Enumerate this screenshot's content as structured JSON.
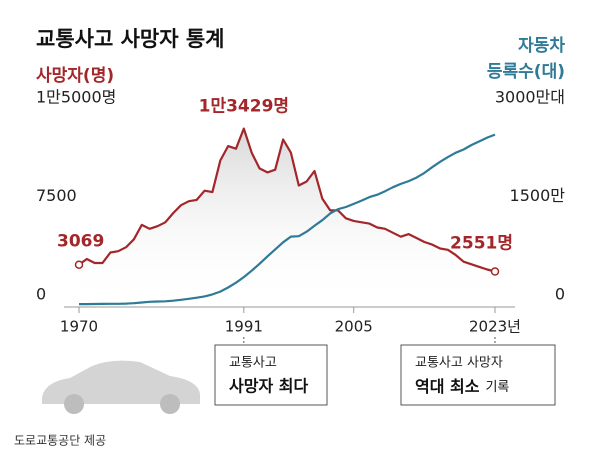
{
  "chart_data": {
    "type": "line",
    "title": "교통사고 사망자 통계",
    "y_label": "사망자(명)",
    "y2_label": [
      "자동차",
      "등록수(대)"
    ],
    "x": [
      1970,
      1971,
      1972,
      1973,
      1974,
      1975,
      1976,
      1977,
      1978,
      1979,
      1980,
      1981,
      1982,
      1983,
      1984,
      1985,
      1986,
      1987,
      1988,
      1989,
      1990,
      1991,
      1992,
      1993,
      1994,
      1995,
      1996,
      1997,
      1998,
      1999,
      2000,
      2001,
      2002,
      2003,
      2004,
      2005,
      2006,
      2007,
      2008,
      2009,
      2010,
      2011,
      2012,
      2013,
      2014,
      2015,
      2016,
      2017,
      2018,
      2019,
      2020,
      2021,
      2022,
      2023
    ],
    "xlim": [
      1970,
      2023
    ],
    "xticks": [
      1970,
      1991,
      2005,
      {
        "value": 2023,
        "label": "2023년"
      }
    ],
    "ylim": [
      0,
      15000
    ],
    "yticks": [
      0,
      7500,
      {
        "value": 15000,
        "label": "1만5000명"
      }
    ],
    "y2lim": [
      0,
      3000
    ],
    "y2ticks": [
      0,
      {
        "value": 1500,
        "label": "1500만"
      },
      {
        "value": 3000,
        "label": "3000만대"
      }
    ],
    "series": [
      {
        "name": "사망자",
        "color": "#a3262a",
        "values": [
          3069,
          3500,
          3200,
          3200,
          4000,
          4100,
          4400,
          5000,
          6100,
          5800,
          6000,
          6300,
          7000,
          7600,
          7900,
          8000,
          8700,
          8600,
          11000,
          12100,
          11900,
          13429,
          11600,
          10400,
          10100,
          10300,
          12600,
          11600,
          9100,
          9400,
          10200,
          8100,
          7200,
          7200,
          6600,
          6400,
          6300,
          6200,
          5900,
          5800,
          5500,
          5200,
          5400,
          5100,
          4800,
          4600,
          4300,
          4200,
          3800,
          3300,
          3100,
          2900,
          2700,
          2551
        ],
        "value_labels": [
          "3069",
          null,
          null,
          null,
          null,
          null,
          null,
          null,
          null,
          null,
          null,
          null,
          null,
          null,
          null,
          null,
          null,
          null,
          null,
          null,
          null,
          "1만3429명",
          null,
          null,
          null,
          null,
          null,
          null,
          null,
          null,
          null,
          null,
          null,
          null,
          null,
          null,
          null,
          null,
          null,
          null,
          null,
          null,
          null,
          null,
          null,
          null,
          null,
          null,
          null,
          null,
          null,
          null,
          null,
          "2551명"
        ]
      },
      {
        "name": "자동차 등록수",
        "color": "#2f7a96",
        "axis": "y2",
        "values": [
          13,
          14,
          15,
          17,
          18,
          19,
          22,
          27,
          38,
          49,
          53,
          57,
          65,
          79,
          95,
          111,
          131,
          161,
          204,
          266,
          339,
          425,
          523,
          627,
          740,
          847,
          955,
          1041,
          1047,
          1116,
          1206,
          1291,
          1395,
          1459,
          1493,
          1540,
          1590,
          1643,
          1679,
          1733,
          1794,
          1844,
          1887,
          1940,
          2012,
          2099,
          2180,
          2253,
          2320,
          2368,
          2437,
          2491,
          2550,
          2595
        ]
      }
    ],
    "callouts": [
      [
        "교통사고",
        "사망자 최다"
      ],
      [
        "교통사고 사망자",
        "역대 최소",
        "기록"
      ]
    ],
    "source": "도로교통공단 제공"
  }
}
